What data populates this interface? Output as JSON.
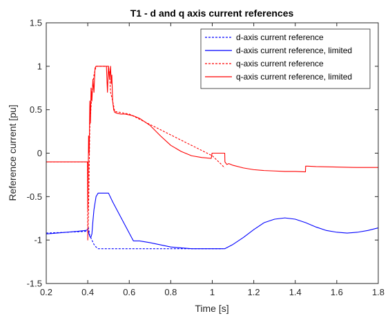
{
  "chart_data": {
    "type": "line",
    "title": "T1 - d and q axis current references",
    "xlabel": "Time [s]",
    "ylabel": "Reference current [pu]",
    "xlim": [
      0.2,
      1.8
    ],
    "ylim": [
      -1.5,
      1.5
    ],
    "xticks": [
      0.2,
      0.4,
      0.6,
      0.8,
      1,
      1.2,
      1.4,
      1.6,
      1.8
    ],
    "xtick_labels": [
      "0.2",
      "0.4",
      "0.6",
      "0.8",
      "1",
      "1.2",
      "1.4",
      "1.6",
      "1.8"
    ],
    "yticks": [
      -1.5,
      -1,
      -0.5,
      0,
      0.5,
      1,
      1.5
    ],
    "ytick_labels": [
      "-1.5",
      "-1",
      "-0.5",
      "0",
      "0.5",
      "1",
      "1.5"
    ],
    "grid": false,
    "legend_position": "top-right",
    "series": [
      {
        "name": "d-axis current reference",
        "color": "#0000ff",
        "style": "dashed",
        "x": [
          0.2,
          0.3,
          0.39,
          0.4,
          0.402,
          0.405,
          0.41,
          0.42,
          0.43,
          0.44,
          0.45,
          0.46,
          0.5,
          0.7,
          1.0,
          1.05
        ],
        "y": [
          -0.92,
          -0.91,
          -0.9,
          -0.88,
          -0.85,
          -0.88,
          -0.95,
          -1.0,
          -1.05,
          -1.08,
          -1.1,
          -1.1,
          -1.1,
          -1.1,
          -1.1,
          -1.1
        ]
      },
      {
        "name": "d-axis current reference, limited",
        "color": "#0000ff",
        "style": "solid",
        "x": [
          0.2,
          0.25,
          0.3,
          0.35,
          0.39,
          0.4,
          0.405,
          0.41,
          0.415,
          0.42,
          0.425,
          0.43,
          0.44,
          0.45,
          0.5,
          0.52,
          0.6,
          0.62,
          0.65,
          0.7,
          0.8,
          0.9,
          1.0,
          1.06,
          1.1,
          1.15,
          1.2,
          1.25,
          1.3,
          1.35,
          1.4,
          1.45,
          1.5,
          1.55,
          1.6,
          1.65,
          1.7,
          1.75,
          1.8
        ],
        "y": [
          -0.93,
          -0.92,
          -0.91,
          -0.9,
          -0.89,
          -0.88,
          -0.92,
          -0.96,
          -0.97,
          -0.93,
          -0.78,
          -0.65,
          -0.5,
          -0.46,
          -0.46,
          -0.56,
          -0.92,
          -1.01,
          -1.01,
          -1.03,
          -1.08,
          -1.1,
          -1.1,
          -1.1,
          -1.05,
          -0.97,
          -0.88,
          -0.8,
          -0.76,
          -0.745,
          -0.76,
          -0.8,
          -0.85,
          -0.89,
          -0.91,
          -0.92,
          -0.91,
          -0.89,
          -0.86
        ]
      },
      {
        "name": "q-axis current reference",
        "color": "#ff0000",
        "style": "dashed",
        "x": [
          0.2,
          0.399,
          0.4,
          0.405,
          0.41,
          0.42,
          0.43,
          0.44,
          0.45,
          0.46,
          0.47,
          0.48,
          0.5,
          0.505,
          0.51,
          0.52,
          0.53,
          0.6,
          1.0,
          1.04,
          1.06
        ],
        "y": [
          -0.1,
          -0.1,
          -1.0,
          -0.5,
          0.3,
          0.7,
          0.9,
          1.0,
          1.0,
          1.0,
          1.0,
          1.0,
          1.0,
          0.9,
          0.7,
          0.6,
          0.48,
          0.45,
          -0.03,
          -0.12,
          -0.17
        ]
      },
      {
        "name": "q-axis current reference, limited",
        "color": "#ff0000",
        "style": "solid",
        "x": [
          0.2,
          0.3,
          0.399,
          0.4,
          0.402,
          0.404,
          0.407,
          0.41,
          0.413,
          0.416,
          0.42,
          0.425,
          0.43,
          0.435,
          0.44,
          0.45,
          0.46,
          0.47,
          0.48,
          0.49,
          0.495,
          0.5,
          0.505,
          0.51,
          0.513,
          0.516,
          0.52,
          0.525,
          0.53,
          0.54,
          0.56,
          0.58,
          0.6,
          0.62,
          0.65,
          0.7,
          0.75,
          0.8,
          0.85,
          0.9,
          0.95,
          0.995,
          0.999,
          1.0,
          1.06,
          1.061,
          1.07,
          1.08,
          1.1,
          1.15,
          1.2,
          1.25,
          1.3,
          1.35,
          1.4,
          1.449,
          1.45,
          1.46,
          1.5,
          1.6,
          1.7,
          1.8
        ],
        "y": [
          -0.1,
          -0.1,
          -0.1,
          -0.65,
          -0.3,
          0.2,
          0.0,
          0.6,
          0.35,
          0.75,
          0.6,
          0.85,
          0.7,
          0.98,
          1.0,
          1.0,
          1.0,
          1.0,
          1.0,
          1.0,
          0.7,
          1.0,
          0.85,
          1.0,
          0.8,
          0.9,
          0.6,
          0.5,
          0.47,
          0.46,
          0.45,
          0.45,
          0.44,
          0.43,
          0.4,
          0.32,
          0.2,
          0.09,
          0.02,
          -0.03,
          -0.05,
          -0.06,
          0.0,
          0.0,
          0.0,
          -0.1,
          -0.13,
          -0.12,
          -0.14,
          -0.17,
          -0.19,
          -0.2,
          -0.205,
          -0.21,
          -0.21,
          -0.215,
          -0.15,
          -0.15,
          -0.155,
          -0.16,
          -0.165,
          -0.165
        ]
      }
    ]
  }
}
